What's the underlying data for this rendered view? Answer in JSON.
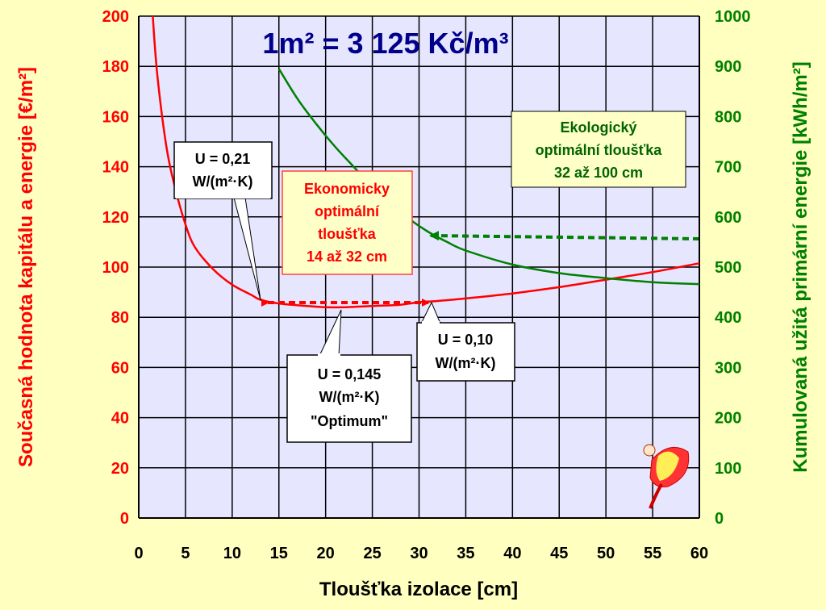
{
  "chart_data": {
    "type": "line",
    "title": "1m² = 3 125 Kč/m³",
    "xlabel": "Tloušťka izolace [cm]",
    "ylabel_left": "Současná hodnota kapitálu a energie [€/m²]",
    "ylabel_right": "Kumulovaná užitá primární energie [kWh/m²]",
    "xlim": [
      0,
      60
    ],
    "ylim_left": [
      0,
      200
    ],
    "ylim_right": [
      0,
      1000
    ],
    "x_ticks": [
      "0",
      "5",
      "10",
      "15",
      "20",
      "25",
      "30",
      "35",
      "40",
      "45",
      "50",
      "55",
      "60"
    ],
    "y_ticks_left": [
      "0",
      "20",
      "40",
      "60",
      "80",
      "100",
      "120",
      "140",
      "160",
      "180",
      "200"
    ],
    "y_ticks_right": [
      "0",
      "100",
      "200",
      "300",
      "400",
      "500",
      "600",
      "700",
      "800",
      "900",
      "1000"
    ],
    "grid": true,
    "colors": {
      "cost": "#ff0000",
      "energy": "#008000",
      "background": "#ffffc0",
      "plot_bg": "#e6e6ff",
      "headline": "#00008b"
    },
    "series": [
      {
        "axis": "left",
        "x": [
          1.5,
          2,
          3,
          4,
          5,
          6,
          8,
          10,
          12,
          13,
          15,
          18,
          20,
          22,
          25,
          28,
          30,
          32,
          35,
          40,
          45,
          50,
          55,
          60
        ],
        "values": [
          200,
          176,
          147,
          130,
          117,
          108,
          99,
          93,
          89,
          87,
          85.5,
          84.5,
          84,
          84,
          84.5,
          85,
          86,
          86.5,
          87.5,
          89.5,
          92,
          95,
          98,
          101.5
        ]
      },
      {
        "axis": "right",
        "x": [
          15,
          17,
          19,
          21,
          23,
          25,
          27,
          29,
          31,
          33,
          35,
          40,
          45,
          50,
          55,
          60
        ],
        "values": [
          895,
          835,
          785,
          740,
          700,
          660,
          625,
          595,
          570,
          550,
          533,
          505,
          488,
          478,
          470,
          466
        ]
      }
    ],
    "annotations": {
      "u021": [
        "U = 0,21",
        "W/(m²·K)"
      ],
      "u0145": [
        "U = 0,145",
        "W/(m²·K)",
        "\"Optimum\""
      ],
      "u010": [
        "U = 0,10",
        "W/(m²·K)"
      ],
      "econ": [
        "Ekonomicky",
        "optimální",
        "tloušťka",
        "14 až 32 cm"
      ],
      "eco": [
        "Ekologický",
        "optimální tloušťka",
        "32 až 100 cm"
      ]
    }
  }
}
